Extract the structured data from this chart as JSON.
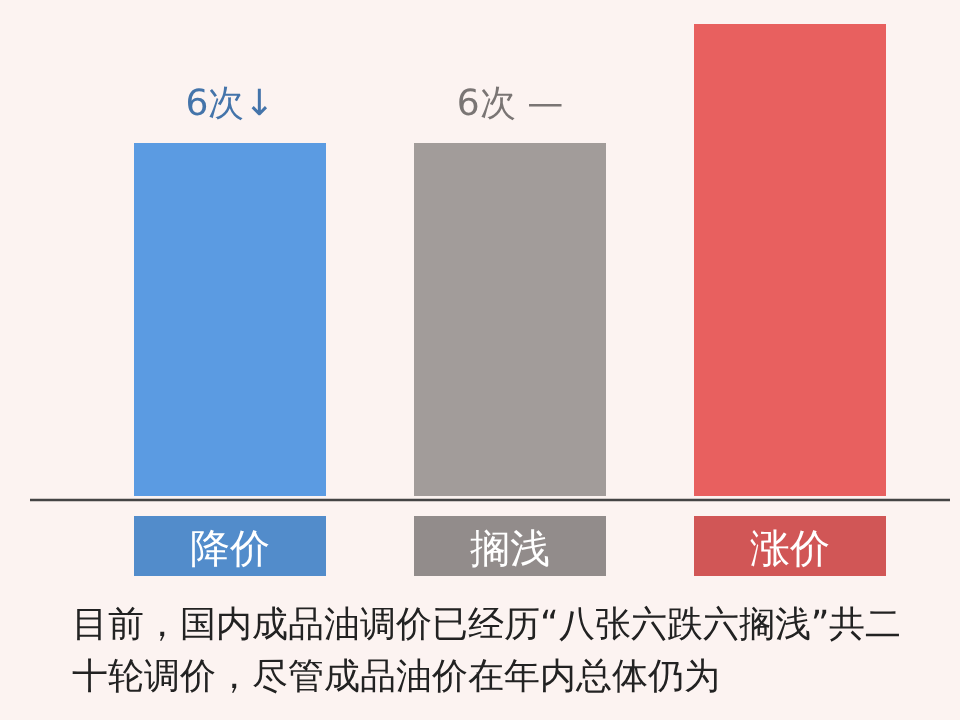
{
  "chart_data": {
    "type": "bar",
    "categories": [
      "降价",
      "搁浅",
      "涨价"
    ],
    "values": [
      6,
      6,
      8
    ],
    "colors": [
      "#5b9be2",
      "#a29c9a",
      "#e8605f"
    ],
    "value_labels": [
      "6次↓",
      "6次 —",
      null
    ],
    "annotations": [
      "目前，国内成品油调价已经历“八张六跌六搁浅”共二十轮调价，尽管成品油价在年内总体仍为"
    ]
  }
}
